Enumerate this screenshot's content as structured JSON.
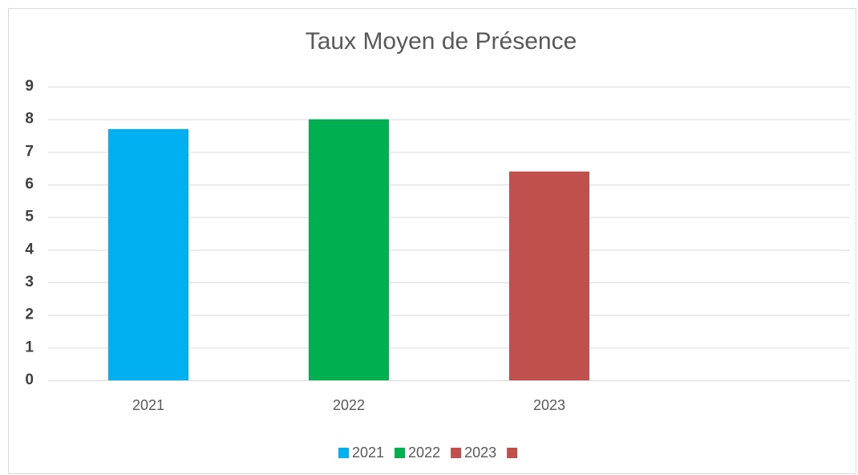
{
  "chart_data": {
    "type": "bar",
    "title": "Taux Moyen de Présence",
    "categories": [
      "2021",
      "2022",
      "2023",
      null
    ],
    "values": [
      7.7,
      8.0,
      6.4,
      null
    ],
    "colors": [
      "#00b0f0",
      "#00b050",
      "#c0504d",
      "#c0504d"
    ],
    "ylim": [
      0,
      9
    ],
    "yticks": [
      0,
      1,
      2,
      3,
      4,
      5,
      6,
      7,
      8,
      9
    ],
    "grid": true,
    "legend": "bottom"
  }
}
